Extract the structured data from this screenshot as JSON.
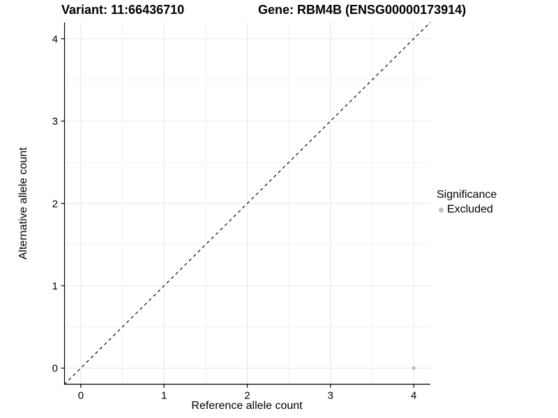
{
  "header": {
    "variant_title": "Variant: 11:66436710",
    "gene_title": "Gene: RBM4B (ENSG00000173914)"
  },
  "chart_data": {
    "type": "scatter",
    "title": "",
    "xlabel": "Reference allele count",
    "ylabel": "Alternative allele count",
    "xlim": [
      -0.2,
      4.2
    ],
    "ylim": [
      -0.2,
      4.2
    ],
    "xticks": [
      0,
      1,
      2,
      3,
      4
    ],
    "yticks": [
      0,
      1,
      2,
      3,
      4
    ],
    "xminor": [
      0.5,
      1.5,
      2.5,
      3.5
    ],
    "yminor": [
      0.5,
      1.5,
      2.5,
      3.5
    ],
    "grid": true,
    "identity_line": {
      "style": "dashed",
      "from": [
        -0.2,
        -0.2
      ],
      "to": [
        4.2,
        4.2
      ],
      "color": "#000000"
    },
    "series": [
      {
        "name": "Excluded",
        "color": "#bebebe",
        "point_radius": 2.6,
        "points": [
          {
            "x": 4,
            "y": 0
          }
        ]
      }
    ],
    "legend": {
      "title": "Significance",
      "position": "right",
      "items": [
        {
          "label": "Excluded",
          "color": "#bebebe"
        }
      ]
    },
    "colors": {
      "grid_major": "#e6e6e6",
      "grid_minor": "#f2f2f2",
      "axis": "#000000",
      "tick": "#000000",
      "text": "#000000",
      "background": "#ffffff"
    }
  }
}
